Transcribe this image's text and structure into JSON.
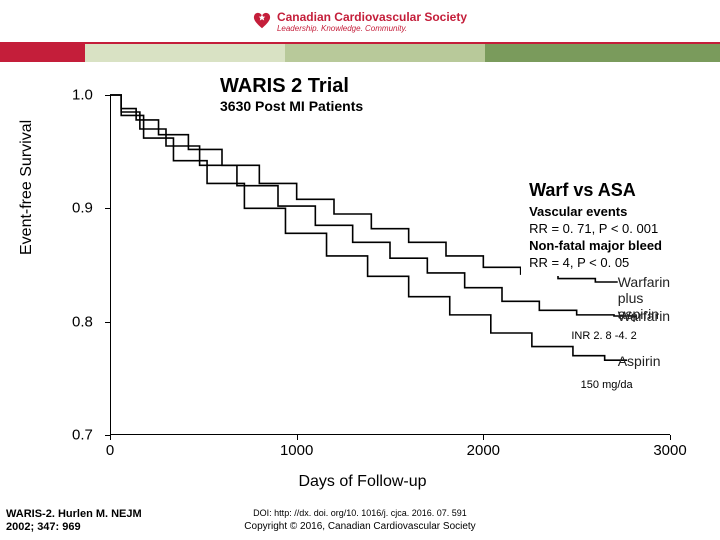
{
  "header": {
    "org_name": "Canadian Cardiovascular Society",
    "tagline": "Leadership. Knowledge. Community.",
    "stripe_colors": [
      "#c41e3a",
      "#d9e2c4",
      "#b8c99a",
      "#7a9b5c"
    ],
    "logo_color": "#c41e3a"
  },
  "chart": {
    "type": "survival-curve",
    "title": "WARIS 2 Trial",
    "subtitle": "3630 Post MI Patients",
    "ylabel": "Event-free Survival",
    "xlabel": "Days of Follow-up",
    "ylim": [
      0.7,
      1.0
    ],
    "yticks": [
      0.7,
      0.8,
      0.9,
      1.0
    ],
    "xlim": [
      0,
      3000
    ],
    "xticks": [
      0,
      1000,
      2000,
      3000
    ],
    "line_color": "#000000",
    "line_width": 1.6,
    "background_color": "#ffffff",
    "series": [
      {
        "name": "Warfarin plus aspirin",
        "label": "Warfarin\nplus aspirin",
        "label_pos": {
          "x": 2720,
          "y": 0.835
        },
        "points": [
          [
            0,
            1.0
          ],
          [
            60,
            0.988
          ],
          [
            140,
            0.978
          ],
          [
            260,
            0.965
          ],
          [
            420,
            0.952
          ],
          [
            600,
            0.938
          ],
          [
            800,
            0.922
          ],
          [
            1000,
            0.908
          ],
          [
            1200,
            0.895
          ],
          [
            1400,
            0.882
          ],
          [
            1600,
            0.87
          ],
          [
            1800,
            0.858
          ],
          [
            2000,
            0.848
          ],
          [
            2200,
            0.842
          ],
          [
            2400,
            0.838
          ],
          [
            2600,
            0.835
          ]
        ]
      },
      {
        "name": "Warfarin",
        "label": "Warfarin",
        "note": "INR 2. 8 -4. 2",
        "label_pos": {
          "x": 2720,
          "y": 0.805
        },
        "note_pos": {
          "x": 2450,
          "y": 0.788
        },
        "points": [
          [
            0,
            1.0
          ],
          [
            60,
            0.985
          ],
          [
            160,
            0.97
          ],
          [
            300,
            0.955
          ],
          [
            480,
            0.938
          ],
          [
            680,
            0.92
          ],
          [
            900,
            0.902
          ],
          [
            1100,
            0.885
          ],
          [
            1300,
            0.87
          ],
          [
            1500,
            0.856
          ],
          [
            1700,
            0.843
          ],
          [
            1900,
            0.83
          ],
          [
            2100,
            0.818
          ],
          [
            2300,
            0.81
          ],
          [
            2500,
            0.806
          ],
          [
            2700,
            0.805
          ]
        ]
      },
      {
        "name": "Aspirin",
        "label": "Aspirin",
        "note": "150 mg/da",
        "label_pos": {
          "x": 2720,
          "y": 0.765
        },
        "note_pos": {
          "x": 2500,
          "y": 0.745
        },
        "points": [
          [
            0,
            1.0
          ],
          [
            60,
            0.982
          ],
          [
            180,
            0.962
          ],
          [
            340,
            0.942
          ],
          [
            520,
            0.922
          ],
          [
            720,
            0.9
          ],
          [
            940,
            0.878
          ],
          [
            1160,
            0.858
          ],
          [
            1380,
            0.84
          ],
          [
            1600,
            0.822
          ],
          [
            1820,
            0.806
          ],
          [
            2040,
            0.79
          ],
          [
            2260,
            0.778
          ],
          [
            2480,
            0.77
          ],
          [
            2650,
            0.766
          ]
        ]
      }
    ]
  },
  "stats": {
    "heading": "Warf vs ASA",
    "line1_label": "Vascular events",
    "line1_val": "RR = 0. 71, P < 0. 001",
    "line2_label": "Non-fatal major bleed",
    "line2_val": "RR = 4, P < 0. 05"
  },
  "footer": {
    "citation_l1": "WARIS-2. Hurlen M. NEJM",
    "citation_l2": "2002; 347: 969",
    "doi": "DOI: http: //dx. doi. org/10. 1016/j. cjca. 2016. 07. 591",
    "copyright": "Copyright © 2016, Canadian Cardiovascular Society"
  }
}
